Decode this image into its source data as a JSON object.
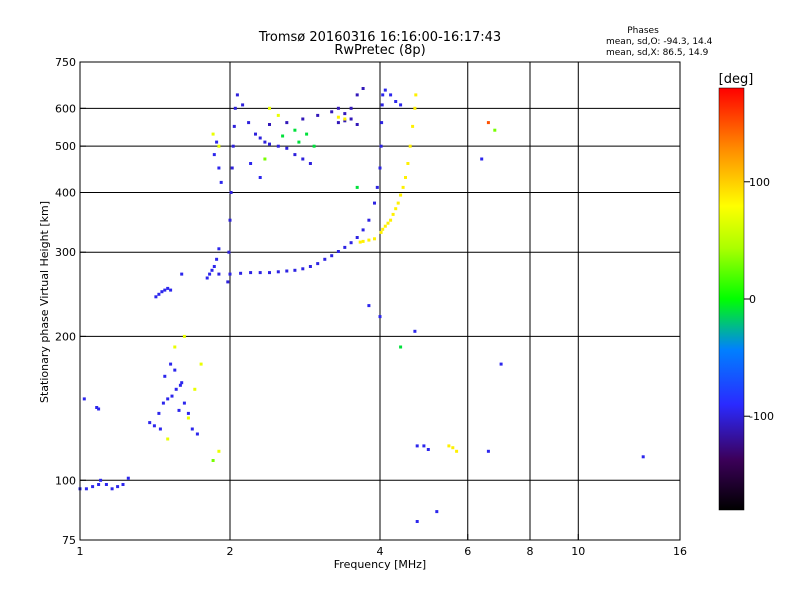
{
  "chart_data": {
    "type": "scatter",
    "title": "Tromsø 20160316 16:16:00-16:17:43",
    "subtitle": "RwPretec (8p)",
    "xlabel": "Frequency [MHz]",
    "ylabel": "Stationary phase Virtual Height [km]",
    "x_scale": "log",
    "y_scale": "log",
    "xlim": [
      1,
      16
    ],
    "ylim": [
      75,
      750
    ],
    "grid": true,
    "x_ticks": [
      1,
      2,
      4,
      6,
      8,
      10,
      16
    ],
    "x_tick_labels": [
      "1",
      "2",
      "4",
      "6",
      "8",
      "10",
      "16"
    ],
    "x_gridlines": [
      2,
      4,
      6,
      8,
      10
    ],
    "y_ticks": [
      75,
      100,
      200,
      300,
      400,
      500,
      600,
      750
    ],
    "y_tick_labels": [
      "75",
      "100",
      "200",
      "300",
      "400",
      "500",
      "600",
      "750"
    ],
    "y_gridlines": [
      100,
      200,
      300,
      400,
      500,
      600
    ],
    "stats": {
      "heading": "Phases",
      "line1": "mean, sd,O: -94.3, 14.4",
      "line2": "mean, sd,X:  86.5, 14.9"
    },
    "colorbar": {
      "label": "[deg]",
      "range": [
        -180,
        180
      ],
      "ticks": [
        100,
        0,
        -100
      ],
      "tick_labels": [
        "100",
        "0",
        "-100"
      ]
    },
    "traces": [
      {
        "phase": -95,
        "points": [
          [
            1.0,
            96
          ],
          [
            1.03,
            96
          ],
          [
            1.06,
            97
          ],
          [
            1.09,
            98
          ],
          [
            1.1,
            100
          ],
          [
            1.13,
            98
          ],
          [
            1.16,
            96
          ],
          [
            1.19,
            97
          ],
          [
            1.22,
            98
          ],
          [
            1.25,
            101
          ],
          [
            1.02,
            148
          ],
          [
            1.08,
            142
          ],
          [
            1.09,
            141
          ]
        ]
      },
      {
        "phase": -95,
        "points": [
          [
            1.38,
            132
          ],
          [
            1.41,
            130
          ],
          [
            1.44,
            138
          ],
          [
            1.47,
            145
          ],
          [
            1.5,
            148
          ],
          [
            1.53,
            150
          ],
          [
            1.56,
            155
          ],
          [
            1.59,
            158
          ],
          [
            1.62,
            145
          ],
          [
            1.65,
            138
          ],
          [
            1.48,
            165
          ],
          [
            1.52,
            175
          ],
          [
            1.55,
            170
          ],
          [
            1.6,
            160
          ],
          [
            1.68,
            128
          ],
          [
            1.72,
            125
          ],
          [
            1.45,
            128
          ],
          [
            1.58,
            140
          ]
        ]
      },
      {
        "phase": -95,
        "points": [
          [
            1.42,
            242
          ],
          [
            1.44,
            245
          ],
          [
            1.46,
            248
          ],
          [
            1.48,
            250
          ],
          [
            1.5,
            252
          ],
          [
            1.52,
            250
          ],
          [
            1.6,
            270
          ],
          [
            1.8,
            265
          ],
          [
            1.82,
            270
          ],
          [
            1.84,
            275
          ],
          [
            1.86,
            280
          ],
          [
            1.88,
            290
          ],
          [
            1.9,
            305
          ]
        ]
      },
      {
        "phase": -98,
        "points": [
          [
            1.9,
            270
          ],
          [
            2.0,
            270
          ],
          [
            2.1,
            271
          ],
          [
            2.2,
            272
          ],
          [
            2.3,
            272
          ],
          [
            2.4,
            272
          ],
          [
            2.5,
            273
          ],
          [
            2.6,
            274
          ],
          [
            2.7,
            275
          ],
          [
            2.8,
            277
          ],
          [
            2.9,
            280
          ],
          [
            3.0,
            284
          ],
          [
            3.1,
            290
          ],
          [
            3.2,
            295
          ],
          [
            3.3,
            301
          ],
          [
            3.4,
            307
          ],
          [
            3.5,
            314
          ],
          [
            3.6,
            322
          ],
          [
            3.7,
            334
          ],
          [
            3.8,
            350
          ],
          [
            3.9,
            380
          ],
          [
            3.95,
            410
          ],
          [
            4.0,
            450
          ],
          [
            4.02,
            500
          ],
          [
            4.03,
            560
          ],
          [
            4.04,
            610
          ]
        ]
      },
      {
        "phase": -100,
        "points": [
          [
            1.98,
            260
          ],
          [
            1.99,
            300
          ],
          [
            2.0,
            350
          ],
          [
            2.01,
            400
          ],
          [
            2.02,
            450
          ],
          [
            2.03,
            500
          ],
          [
            2.04,
            550
          ],
          [
            2.05,
            600
          ],
          [
            2.07,
            640
          ],
          [
            2.12,
            610
          ],
          [
            2.18,
            560
          ],
          [
            2.25,
            530
          ],
          [
            2.3,
            520
          ],
          [
            2.35,
            510
          ],
          [
            2.4,
            505
          ],
          [
            2.5,
            500
          ],
          [
            2.6,
            495
          ],
          [
            2.7,
            480
          ],
          [
            2.8,
            470
          ],
          [
            2.9,
            460
          ]
        ]
      },
      {
        "phase": -110,
        "points": [
          [
            2.4,
            555
          ],
          [
            2.6,
            560
          ],
          [
            2.8,
            570
          ],
          [
            3.0,
            580
          ],
          [
            3.2,
            590
          ],
          [
            3.3,
            600
          ],
          [
            3.4,
            585
          ],
          [
            3.5,
            600
          ],
          [
            3.6,
            640
          ],
          [
            3.7,
            660
          ],
          [
            3.5,
            570
          ],
          [
            3.4,
            565
          ],
          [
            3.3,
            560
          ],
          [
            3.6,
            555
          ]
        ]
      },
      {
        "phase": -95,
        "points": [
          [
            4.05,
            640
          ],
          [
            4.1,
            655
          ],
          [
            4.2,
            640
          ],
          [
            4.3,
            620
          ],
          [
            4.4,
            610
          ],
          [
            1.88,
            510
          ],
          [
            1.86,
            480
          ],
          [
            1.9,
            450
          ],
          [
            1.92,
            420
          ],
          [
            4.7,
            205
          ],
          [
            4.75,
            118
          ],
          [
            4.9,
            118
          ],
          [
            5.0,
            116
          ],
          [
            6.4,
            470
          ],
          [
            6.6,
            115
          ],
          [
            7.0,
            175
          ],
          [
            4.75,
            82
          ],
          [
            5.2,
            86
          ],
          [
            13.5,
            112
          ],
          [
            4.0,
            220
          ],
          [
            3.8,
            232
          ],
          [
            2.2,
            460
          ],
          [
            2.3,
            430
          ]
        ]
      },
      {
        "phase": -10,
        "points": [
          [
            2.55,
            525
          ],
          [
            2.75,
            510
          ],
          [
            2.85,
            530
          ],
          [
            2.95,
            500
          ],
          [
            2.7,
            540
          ],
          [
            3.6,
            410
          ],
          [
            4.4,
            190
          ]
        ]
      },
      {
        "phase": 85,
        "points": [
          [
            4.02,
            330
          ],
          [
            4.05,
            335
          ],
          [
            4.1,
            340
          ],
          [
            4.15,
            345
          ],
          [
            4.2,
            350
          ],
          [
            4.25,
            360
          ],
          [
            4.3,
            370
          ],
          [
            4.35,
            380
          ],
          [
            4.4,
            395
          ],
          [
            4.45,
            410
          ],
          [
            4.5,
            430
          ],
          [
            4.55,
            460
          ],
          [
            4.6,
            500
          ],
          [
            4.65,
            550
          ],
          [
            4.7,
            600
          ],
          [
            4.72,
            640
          ],
          [
            3.65,
            315
          ],
          [
            3.7,
            316
          ],
          [
            3.8,
            318
          ],
          [
            3.9,
            320
          ],
          [
            5.5,
            118
          ],
          [
            5.6,
            117
          ],
          [
            5.7,
            115
          ],
          [
            3.3,
            575
          ],
          [
            3.4,
            570
          ]
        ]
      },
      {
        "phase": 70,
        "points": [
          [
            1.85,
            530
          ],
          [
            1.9,
            500
          ],
          [
            1.75,
            175
          ],
          [
            1.7,
            155
          ],
          [
            1.65,
            135
          ],
          [
            1.55,
            190
          ],
          [
            1.62,
            200
          ],
          [
            1.9,
            115
          ],
          [
            1.5,
            122
          ],
          [
            2.4,
            600
          ],
          [
            2.5,
            580
          ]
        ]
      },
      {
        "phase": 30,
        "points": [
          [
            6.8,
            540
          ],
          [
            1.85,
            110
          ],
          [
            2.35,
            470
          ]
        ]
      },
      {
        "phase": 150,
        "points": [
          [
            6.6,
            560
          ]
        ]
      }
    ]
  }
}
